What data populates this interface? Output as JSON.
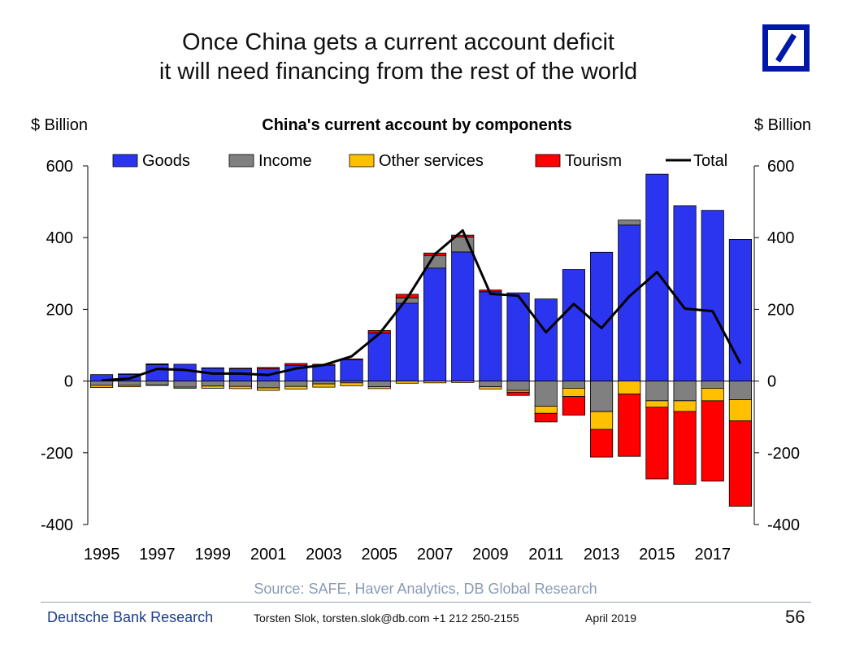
{
  "slide": {
    "title_line1": "Once China gets a current account deficit",
    "title_line2": "it will need financing from the rest of the world",
    "source": "Source: SAFE, Haver Analytics, DB Global Research",
    "footer_org": "Deutsche Bank Research",
    "footer_author": "Torsten Slok, torsten.slok@db.com  +1 212 250-2155",
    "footer_date": "April 2019",
    "page_number": "56",
    "logo_color": "#0018a8"
  },
  "chart_data": {
    "type": "bar",
    "stacked": true,
    "title": "China's current account by components",
    "ylabel_left": "$ Billion",
    "ylabel_right": "$ Billion",
    "ylim": [
      -400,
      600
    ],
    "yticks": [
      -400,
      -200,
      0,
      200,
      400,
      600
    ],
    "ytick_labels": [
      "-400",
      "-200",
      "0",
      "200",
      "400",
      "600"
    ],
    "x": [
      1995,
      1996,
      1997,
      1998,
      1999,
      2000,
      2001,
      2002,
      2003,
      2004,
      2005,
      2006,
      2007,
      2008,
      2009,
      2010,
      2011,
      2012,
      2013,
      2014,
      2015,
      2016,
      2017,
      2018
    ],
    "xtick_labels": [
      "1995",
      "1997",
      "1999",
      "2001",
      "2003",
      "2005",
      "2007",
      "2009",
      "2011",
      "2013",
      "2015",
      "2017"
    ],
    "series": [
      {
        "name": "Goods",
        "color": "#2b35f0",
        "values": [
          18,
          19,
          46,
          47,
          36,
          34,
          34,
          44,
          44,
          59,
          134,
          217,
          315,
          360,
          249,
          246,
          229,
          311,
          359,
          435,
          577,
          489,
          476,
          395
        ]
      },
      {
        "name": "Income",
        "color": "#808080",
        "values": [
          -12,
          -12,
          -11,
          -17,
          -14,
          -15,
          -19,
          -15,
          -8,
          -5,
          -16,
          15,
          35,
          42,
          -16,
          -26,
          -70,
          -20,
          -85,
          14,
          -55,
          -55,
          -20,
          -52
        ]
      },
      {
        "name": "Other services",
        "color": "#ffc000",
        "values": [
          -6,
          -4,
          -1,
          -3,
          -6,
          -6,
          -7,
          -7,
          -9,
          -8,
          -5,
          -6,
          -5,
          -4,
          -6,
          -5,
          -20,
          -23,
          -50,
          -36,
          -18,
          -30,
          -35,
          -59
        ]
      },
      {
        "name": "Tourism",
        "color": "#ff0000",
        "values": [
          0,
          1,
          2,
          0,
          1,
          2,
          4,
          5,
          3,
          3,
          7,
          10,
          7,
          5,
          5,
          -9,
          -24,
          -52,
          -77,
          -174,
          -200,
          -203,
          -224,
          -238
        ]
      }
    ],
    "line": {
      "name": "Total",
      "color": "#000000",
      "values": [
        2,
        7,
        34,
        31,
        21,
        21,
        17,
        35,
        45,
        69,
        132,
        231,
        354,
        420,
        243,
        238,
        136,
        215,
        148,
        236,
        304,
        202,
        195,
        49
      ]
    },
    "legend_position": "top"
  }
}
